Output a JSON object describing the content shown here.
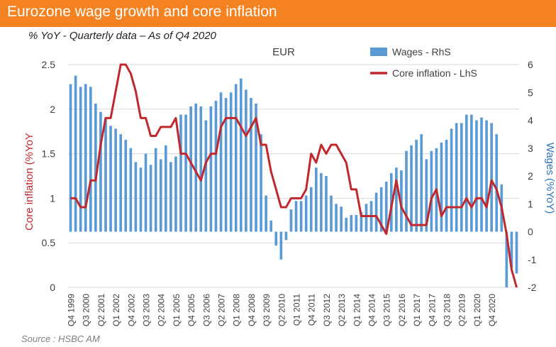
{
  "header": {
    "title": "Eurozone wage growth and core inflation",
    "subtitle": "% YoY - Quarterly data – As of Q4 2020",
    "banner_color": "#f58220"
  },
  "source": "Source : HSBC AM",
  "chart_data": {
    "type": "bar+line",
    "title": "EUR",
    "x_tick_labels": [
      "Q4 1999",
      "Q3 2000",
      "Q2 2001",
      "Q1 2002",
      "Q4 2002",
      "Q3 2003",
      "Q2 2004",
      "Q1 2005",
      "Q4 2005",
      "Q3 2006",
      "Q2 2007",
      "Q1 2008",
      "Q4 2008",
      "Q3 2009",
      "Q2 2010",
      "Q1 2011",
      "Q4 2011",
      "Q3 2012",
      "Q2 2013",
      "Q1 2014",
      "Q4 2014",
      "Q3 2015",
      "Q2 2016",
      "Q1 2017",
      "Q4 2017",
      "Q3 2018",
      "Q2 2019",
      "Q1 2020",
      "Q4 2020"
    ],
    "left_axis": {
      "label": "Core inflation (%YoY",
      "ylim": [
        0,
        2.5
      ],
      "ticks": [
        "0",
        "0.5",
        "1",
        "1.5",
        "2",
        "2.5"
      ],
      "color": "#c0282d"
    },
    "right_axis": {
      "label": "Wages (%YoY)",
      "ylim": [
        -2,
        6
      ],
      "ticks": [
        "-2",
        "-1",
        "0",
        "1",
        "2",
        "3",
        "4",
        "5",
        "6"
      ],
      "color": "#2e75b6"
    },
    "legend": [
      "Wages - RhS",
      "Core inflation - LhS"
    ],
    "legend_position": "top-right",
    "series": [
      {
        "name": "Wages - RhS",
        "type": "bar",
        "axis": "right",
        "color": "#5b9bd5",
        "values": [
          5.3,
          5.6,
          5.2,
          5.3,
          5.2,
          4.6,
          4.3,
          4.1,
          3.8,
          3.7,
          3.5,
          3.3,
          3.0,
          2.5,
          2.3,
          2.8,
          2.4,
          3.0,
          2.6,
          3.1,
          2.5,
          2.7,
          4.2,
          4.2,
          4.5,
          4.6,
          4.5,
          4.0,
          4.5,
          4.7,
          5.0,
          4.8,
          5.0,
          5.3,
          5.5,
          5.1,
          4.8,
          4.6,
          3.5,
          1.3,
          0.4,
          -0.5,
          -1.0,
          -0.3,
          0.8,
          1.1,
          1.1,
          1.3,
          1.6,
          2.3,
          2.1,
          2.0,
          1.3,
          1.0,
          0.9,
          0.5,
          0.6,
          0.6,
          0.7,
          1.0,
          1.1,
          1.4,
          1.6,
          1.8,
          2.1,
          2.3,
          2.2,
          2.9,
          3.1,
          3.3,
          3.5,
          2.6,
          2.9,
          3.0,
          3.2,
          3.3,
          3.7,
          3.9,
          3.9,
          4.2,
          4.2,
          4.0,
          4.1,
          4.0,
          3.9,
          3.5,
          1.7,
          -2.0,
          -1.3,
          -1.5
        ]
      },
      {
        "name": "Core inflation - LhS",
        "type": "line",
        "axis": "left",
        "color": "#c0282d",
        "values": [
          1.0,
          1.0,
          0.9,
          0.9,
          1.2,
          1.2,
          1.6,
          1.9,
          1.9,
          2.2,
          2.5,
          2.5,
          2.4,
          2.2,
          1.9,
          1.9,
          1.7,
          1.7,
          1.8,
          1.8,
          1.8,
          1.9,
          1.5,
          1.5,
          1.4,
          1.3,
          1.2,
          1.4,
          1.5,
          1.5,
          1.8,
          1.9,
          1.9,
          1.9,
          1.8,
          1.7,
          1.8,
          1.9,
          1.6,
          1.6,
          1.3,
          1.1,
          0.9,
          0.9,
          1.0,
          1.0,
          1.0,
          1.1,
          1.5,
          1.4,
          1.6,
          1.5,
          1.6,
          1.6,
          1.5,
          1.4,
          1.1,
          1.1,
          0.8,
          0.8,
          0.8,
          0.8,
          0.7,
          0.6,
          0.9,
          1.2,
          0.9,
          0.8,
          0.7,
          0.7,
          0.7,
          0.7,
          1.0,
          1.1,
          0.8,
          0.9,
          0.9,
          0.9,
          0.9,
          1.0,
          0.9,
          1.0,
          1.0,
          0.9,
          1.2,
          1.1,
          0.9,
          0.6,
          0.2,
          0.0
        ]
      }
    ],
    "gridlines": true,
    "source": "Source : HSBC AM"
  }
}
